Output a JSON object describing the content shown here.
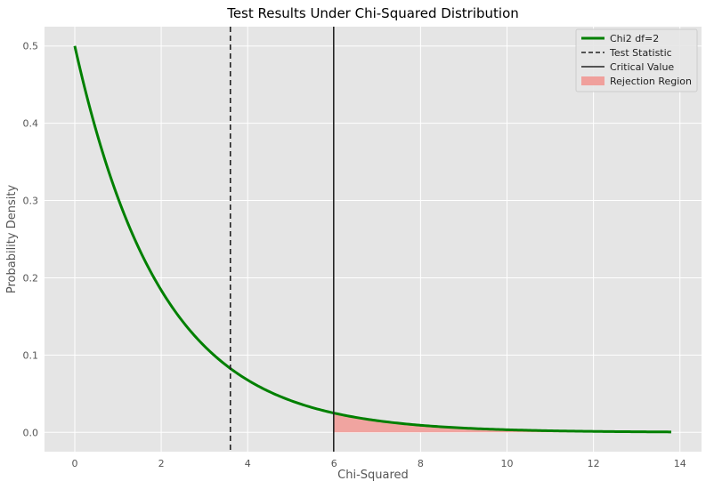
{
  "chart_data": {
    "type": "line",
    "title": "Test Results Under Chi-Squared Distribution",
    "xlabel": "Chi-Squared",
    "ylabel": "Probability Density",
    "xlim": [
      -0.7,
      14.5
    ],
    "ylim": [
      -0.025,
      0.525
    ],
    "xticks": [
      0,
      2,
      4,
      6,
      8,
      10,
      12,
      14
    ],
    "yticks": [
      0.0,
      0.1,
      0.2,
      0.3,
      0.4,
      0.5
    ],
    "xtick_labels": [
      "0",
      "2",
      "4",
      "6",
      "8",
      "10",
      "12",
      "14"
    ],
    "ytick_labels": [
      "0.0",
      "0.1",
      "0.2",
      "0.3",
      "0.4",
      "0.5"
    ],
    "grid": true,
    "legend_position": "top-right",
    "curve": {
      "name": "Chi2 df=2",
      "df": 2,
      "x_range": [
        0,
        13.8
      ],
      "color": "#008000"
    },
    "test_statistic": {
      "name": "Test Statistic",
      "x": 3.6,
      "style": "dashed",
      "color": "#222222"
    },
    "critical_value": {
      "name": "Critical Value",
      "x": 5.99,
      "style": "solid",
      "color": "#222222"
    },
    "rejection_region": {
      "name": "Rejection Region",
      "x_from": 5.99,
      "x_to": 13.8,
      "color": "#f0a09c"
    },
    "background_color": "#e5e5e5"
  }
}
